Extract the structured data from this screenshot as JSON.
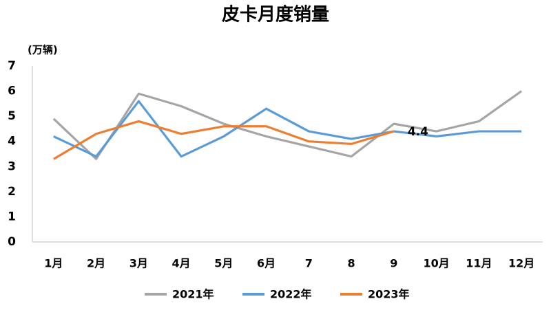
{
  "chart_data": {
    "type": "line",
    "title": "皮卡月度销量",
    "y_label": "(万辆)",
    "categories": [
      "1月",
      "2月",
      "3月",
      "4月",
      "5月",
      "6月",
      "7",
      "8",
      "9",
      "10月",
      "11月",
      "12月"
    ],
    "series": [
      {
        "name": "2021年",
        "color": "#a5a5a5",
        "values": [
          4.9,
          3.3,
          5.9,
          5.4,
          4.7,
          4.2,
          3.8,
          3.4,
          4.7,
          4.4,
          4.8,
          6.0
        ]
      },
      {
        "name": "2022年",
        "color": "#5b9bd5",
        "values": [
          4.2,
          3.4,
          5.6,
          3.4,
          4.2,
          5.3,
          4.4,
          4.1,
          4.4,
          4.2,
          4.4,
          4.4
        ]
      },
      {
        "name": "2023年",
        "color": "#ed7d31",
        "values": [
          3.3,
          4.3,
          4.8,
          4.3,
          4.6,
          4.6,
          4.0,
          3.9,
          4.4,
          null,
          null,
          null
        ],
        "value_labels": [
          null,
          null,
          null,
          null,
          null,
          null,
          null,
          null,
          "4.4",
          null,
          null,
          null
        ]
      }
    ],
    "ylim": [
      0,
      7
    ],
    "yticks": [
      0,
      1,
      2,
      3,
      4,
      5,
      6,
      7
    ],
    "grid": false,
    "legend": "bottom"
  }
}
